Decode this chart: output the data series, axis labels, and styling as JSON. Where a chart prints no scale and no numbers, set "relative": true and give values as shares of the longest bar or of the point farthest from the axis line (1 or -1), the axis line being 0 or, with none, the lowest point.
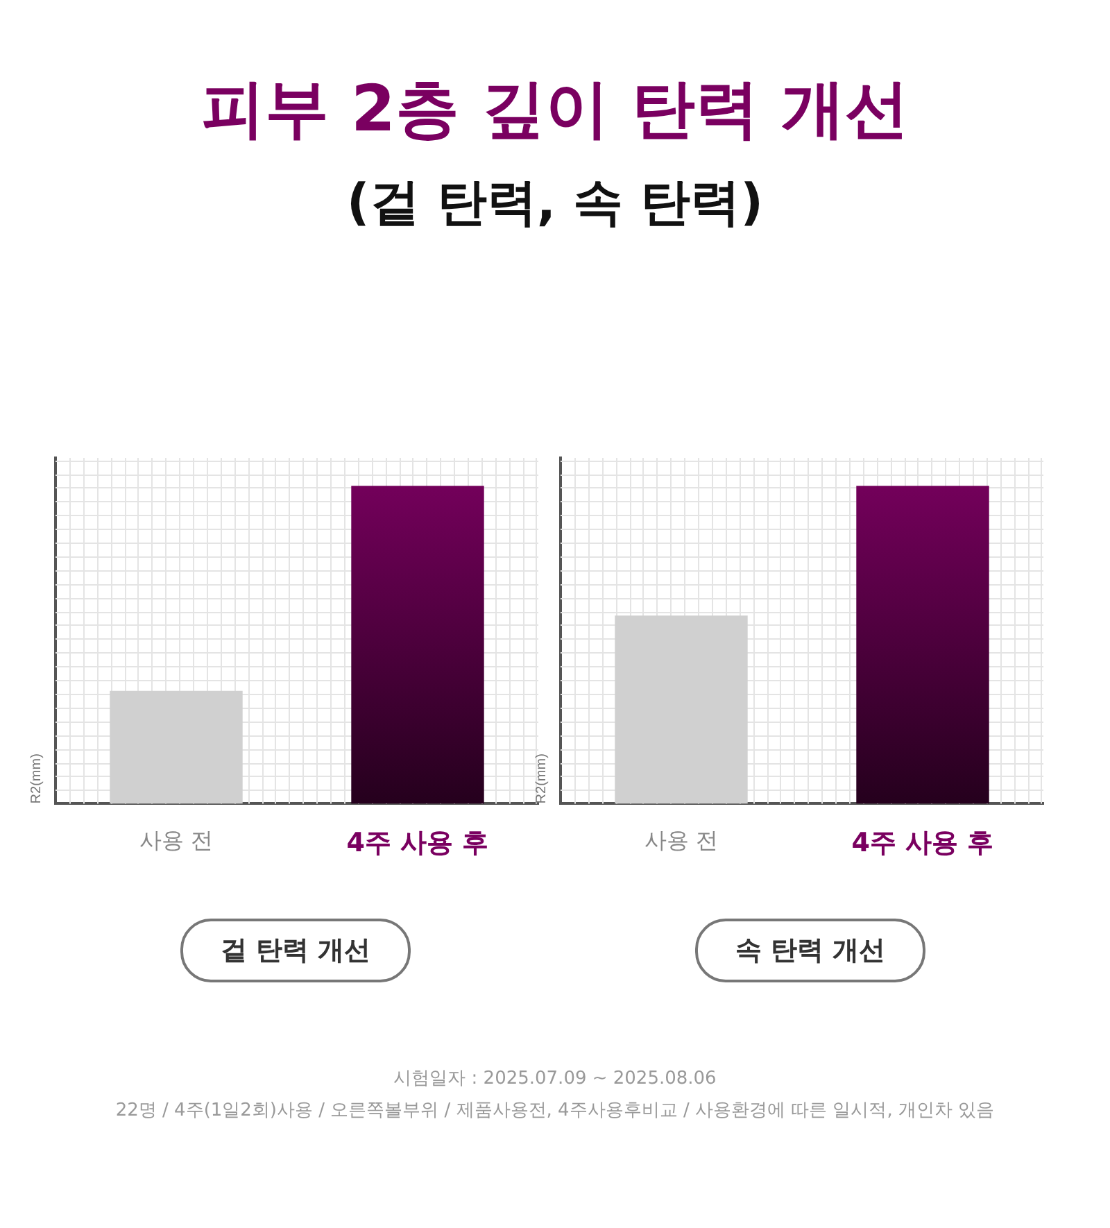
{
  "chart_data": [
    {
      "type": "bar",
      "title": "피부 2층 깊이 탄력 개선",
      "subtitle": "(겉 탄력, 속 탄력)",
      "xlabel": "겉 탄력 개선",
      "ylabel": "R2(mm)",
      "categories": [
        "사용 전",
        "4주 사용 후"
      ],
      "values": [
        0.355,
        1
      ],
      "colors": [
        "#d0d0d0",
        "#7a0060"
      ],
      "relative": true,
      "grid": true,
      "legend": false
    },
    {
      "type": "bar",
      "xlabel": "속 탄력 개선",
      "ylabel": "R2(mm)",
      "categories": [
        "사용 전",
        "4주 사용 후"
      ],
      "values": [
        0.592,
        1
      ],
      "colors": [
        "#d0d0d0",
        "#7a0060"
      ],
      "relative": true,
      "grid": true,
      "legend": false,
      "annotations": [
        "시험일자 : 2025.07.09 ~ 2025.08.06",
        "22명 / 4주(1일2회)사용 / 오른쪽볼부위 / 제품사용전, 4주사용후비교 / 사용환경에 따른 일시적, 개인차 있음"
      ]
    }
  ]
}
